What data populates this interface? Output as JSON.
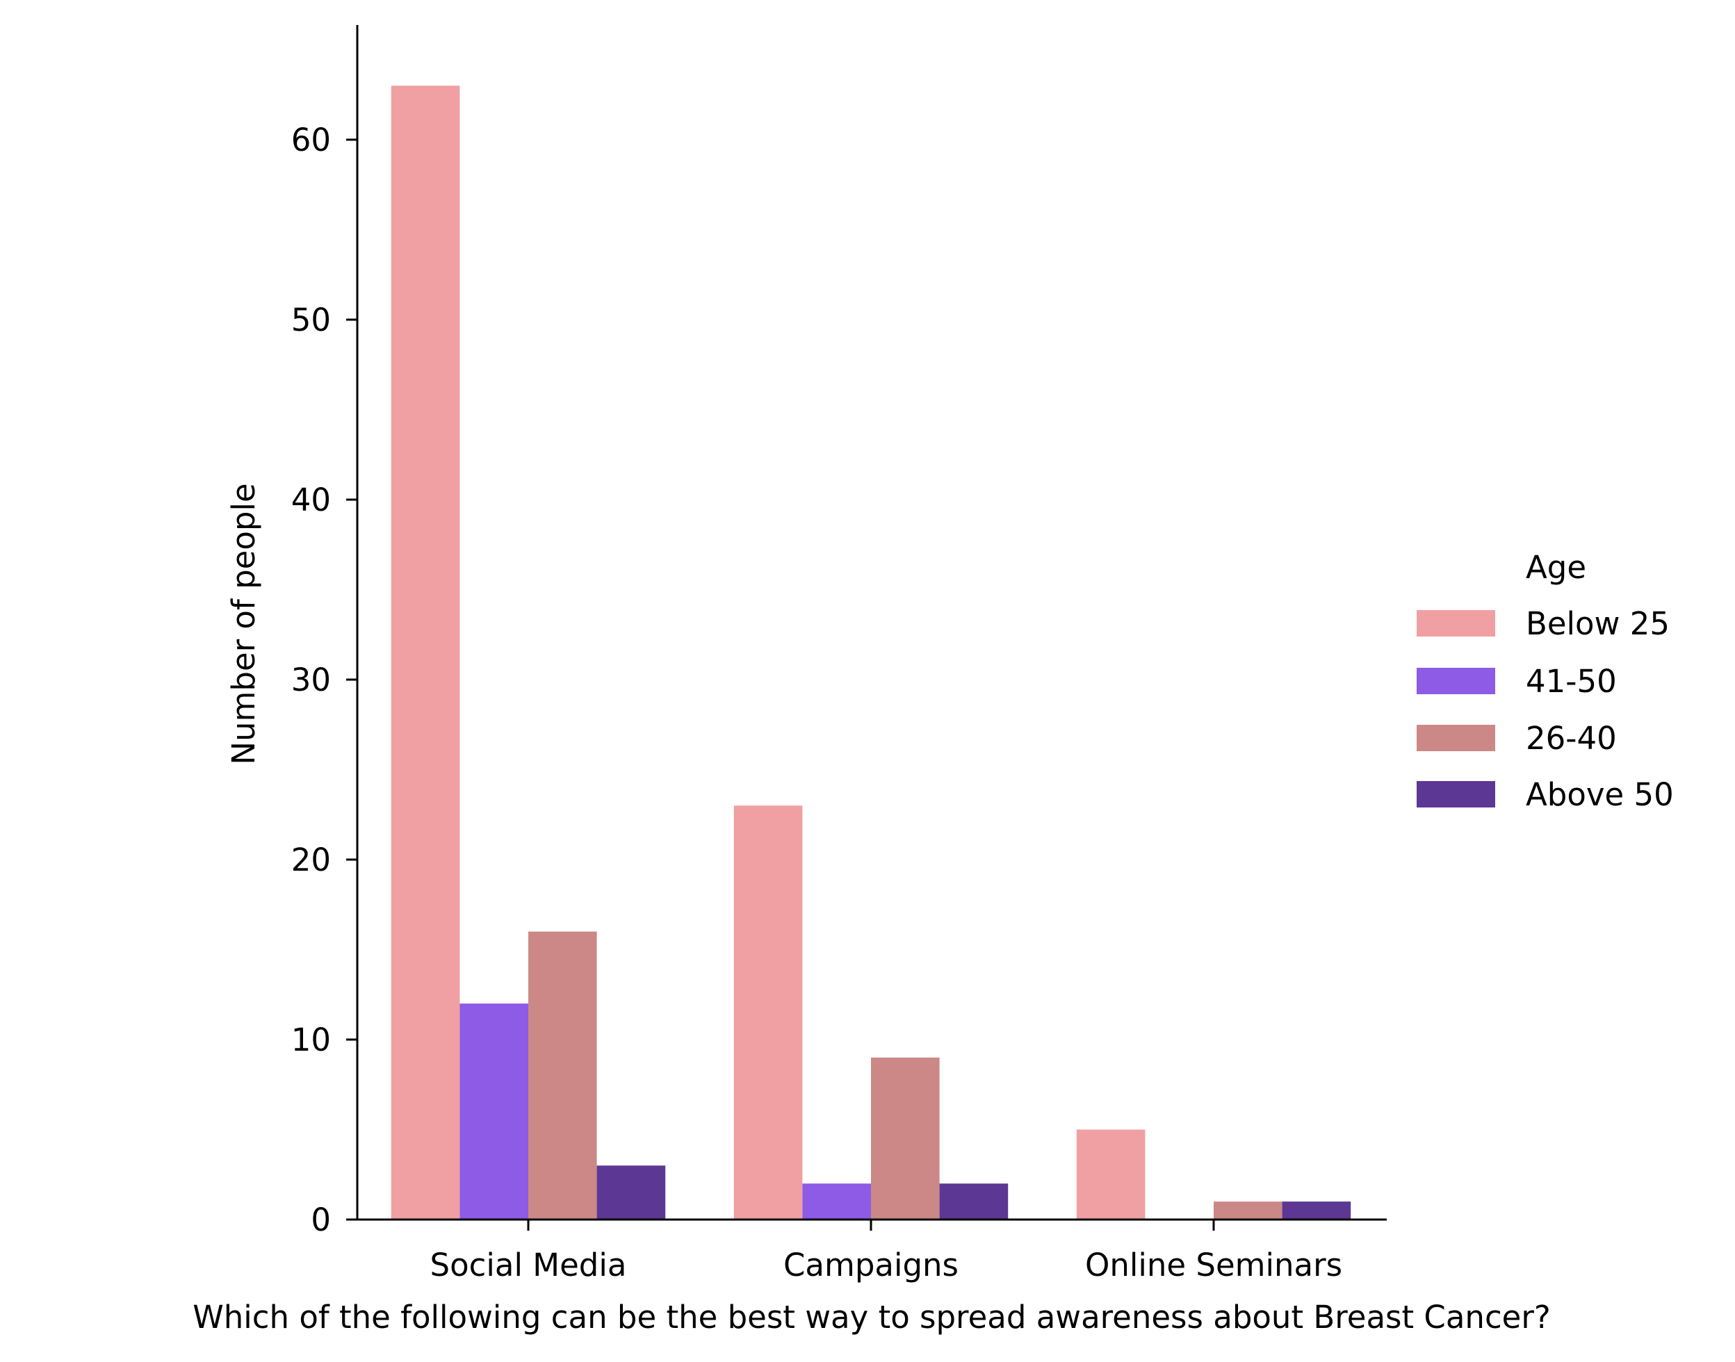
{
  "chart_data": {
    "type": "bar",
    "title": "",
    "xlabel": "Which of the following can be the best way to spread awareness about Breast Cancer?",
    "ylabel": "Number of people",
    "categories": [
      "Social Media",
      "Campaigns",
      "Online Seminars"
    ],
    "series": [
      {
        "name": "Below 25",
        "color": "#f0a0a2",
        "values": [
          63,
          23,
          5
        ]
      },
      {
        "name": "41-50",
        "color": "#8d5be6",
        "values": [
          12,
          2,
          0
        ]
      },
      {
        "name": "26-40",
        "color": "#cc8886",
        "values": [
          16,
          9,
          1
        ]
      },
      {
        "name": "Above 50",
        "color": "#5d3794",
        "values": [
          3,
          2,
          1
        ]
      }
    ],
    "ylim": [
      0,
      66
    ],
    "yticks": [
      0,
      10,
      20,
      30,
      40,
      50,
      60
    ],
    "ytick_labels": [
      "0",
      "10",
      "20",
      "30",
      "40",
      "50",
      "60"
    ],
    "grid": false,
    "legend": {
      "title": "Age",
      "placement": "right"
    }
  }
}
